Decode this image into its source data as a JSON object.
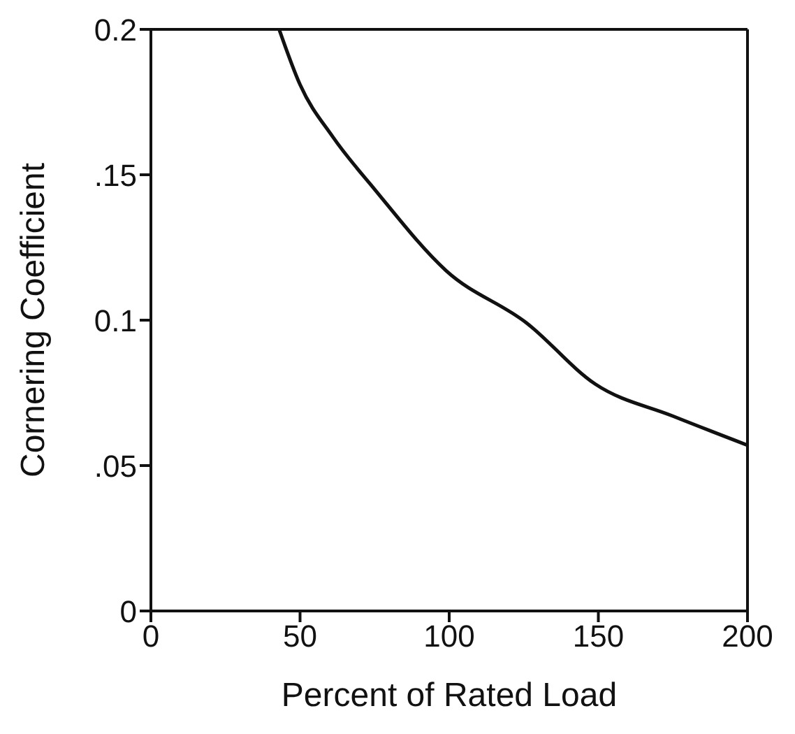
{
  "chart_data": {
    "type": "line",
    "xlabel": "Percent of Rated Load",
    "ylabel": "Cornering Coefficient",
    "series": [
      {
        "color": "#111111",
        "x": [
          43,
          50,
          61,
          75,
          99,
          126,
          149,
          175,
          200
        ],
        "values": [
          0.2,
          0.181,
          0.163,
          0.145,
          0.117,
          0.099,
          0.078,
          0.067,
          0.057
        ]
      }
    ],
    "xlim": [
      0,
      200
    ],
    "xticks": [
      0,
      50,
      100,
      150,
      200
    ],
    "ylim": [
      0,
      0.2
    ],
    "yticks": [
      0,
      {
        "value": 0.05,
        "label": ".05"
      },
      0.1,
      {
        "value": 0.15,
        "label": ".15"
      },
      0.2
    ],
    "grid": false,
    "marker": "none",
    "line_style": "solid"
  }
}
